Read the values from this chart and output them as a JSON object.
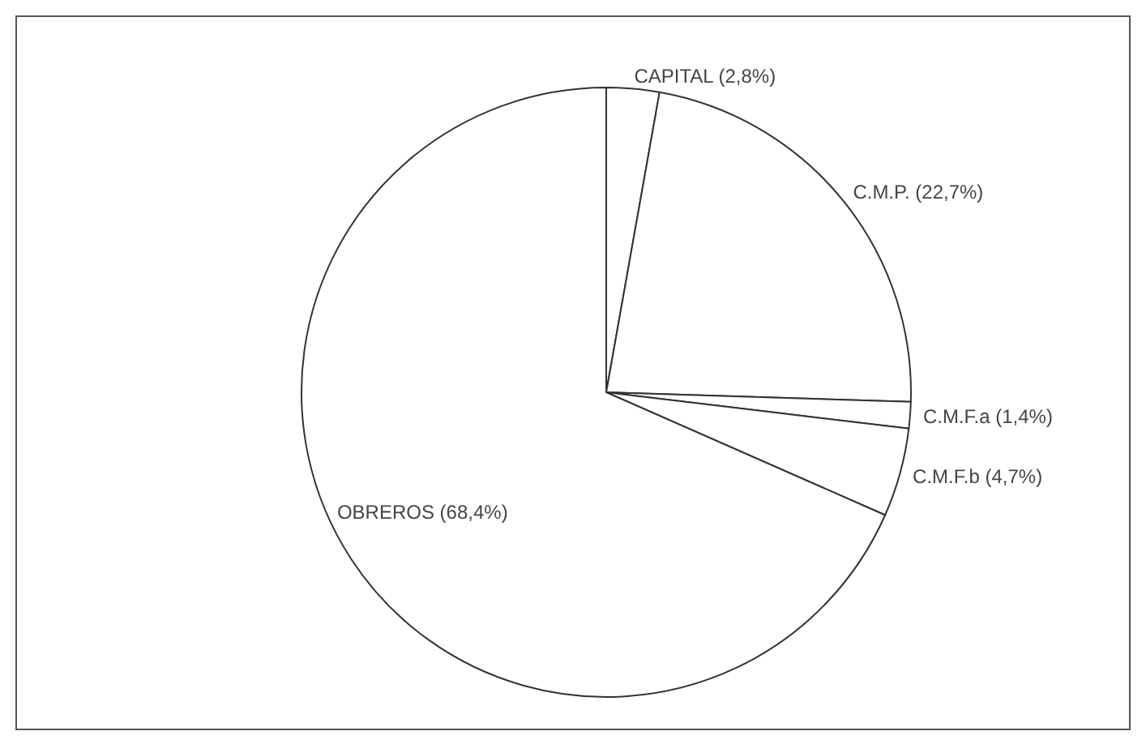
{
  "chart_data": {
    "type": "pie",
    "categories": [
      "CAPITAL",
      "C.M.P.",
      "C.M.F.a",
      "C.M.F.b",
      "OBREROS"
    ],
    "values": [
      2.8,
      22.7,
      1.4,
      4.7,
      68.4
    ],
    "value_labels": [
      "(2,8%)",
      "(22,7%)",
      "(1,4%)",
      "(4,7%)",
      "(68,4%)"
    ],
    "colors": [
      "#ffffff",
      "#ffffff",
      "#ffffff",
      "#ffffff",
      "#ffffff"
    ]
  }
}
